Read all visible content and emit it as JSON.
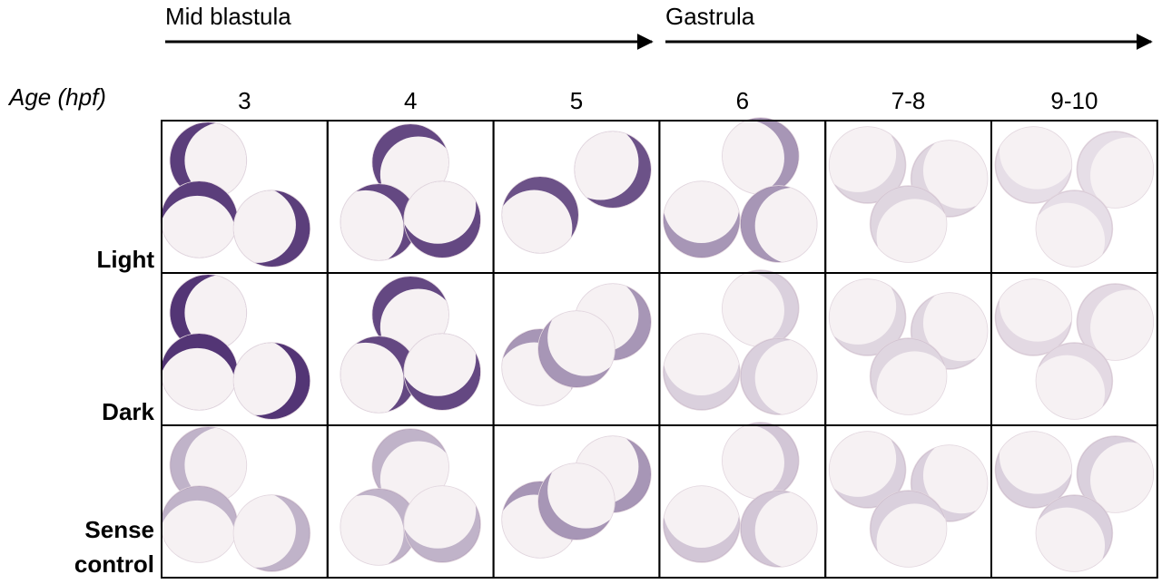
{
  "stages": [
    "Mid blastula",
    "Gastrula"
  ],
  "age_label": "Age (hpf)",
  "ages": [
    "3",
    "4",
    "5",
    "6",
    "7-8",
    "9-10"
  ],
  "rows": [
    [
      "Light"
    ],
    [
      "Dark"
    ],
    [
      "Sense",
      "control"
    ]
  ]
}
